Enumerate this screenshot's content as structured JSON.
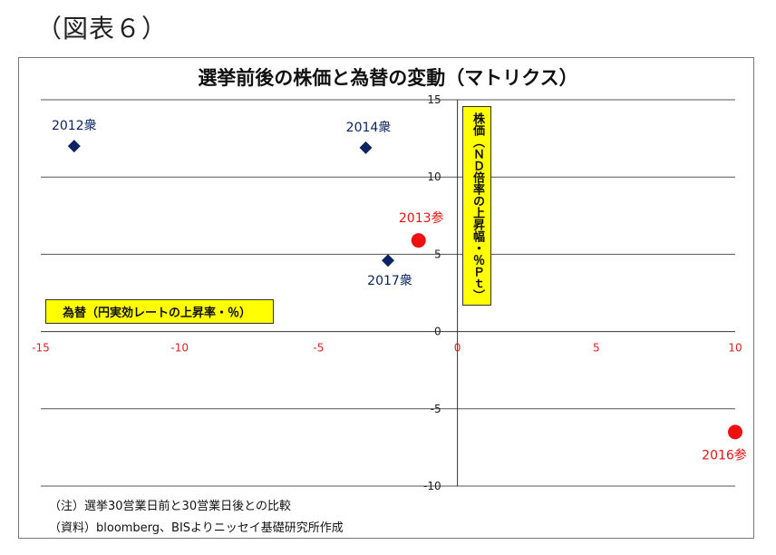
{
  "figure_label": "（図表６）",
  "notes": {
    "note1": "（注）選挙30営業日前と30営業日後との比較",
    "note2": "（資料）bloomberg、BISよりニッセイ基礎研究所作成"
  },
  "chart_data": {
    "type": "scatter",
    "title": "選挙前後の株価と為替の変動（マトリクス）",
    "xlabel": "為替（円実効レートの上昇率・％）",
    "ylabel": "株価（ＮＤ倍率の上昇幅・％Ｐｔ）",
    "xlim": [
      -15,
      10
    ],
    "ylim": [
      -10,
      15
    ],
    "x_ticks": [
      "-15",
      "-10",
      "-5",
      "0",
      "5",
      "10"
    ],
    "y_ticks": [
      "15",
      "10",
      "5",
      "0",
      "-5",
      "-10"
    ],
    "grid": true,
    "colors": {
      "shugiin": "#0d2463",
      "sangiin": "#ee1111",
      "x_tick": "#dd2222",
      "y_tick": "#222222",
      "grid": "#555555"
    },
    "series": [
      {
        "marker": "diamond",
        "color": "#0d2463",
        "points": [
          {
            "label": "2012衆",
            "x": -13.8,
            "y": 12.0
          },
          {
            "label": "2014衆",
            "x": -3.3,
            "y": 11.9
          },
          {
            "label": "2017衆",
            "x": -2.5,
            "y": 4.6
          }
        ]
      },
      {
        "marker": "circle",
        "color": "#ee1111",
        "points": [
          {
            "label": "2013参",
            "x": -1.4,
            "y": 5.9
          },
          {
            "label": "2016参",
            "x": 10.0,
            "y": -6.5
          }
        ]
      }
    ]
  }
}
